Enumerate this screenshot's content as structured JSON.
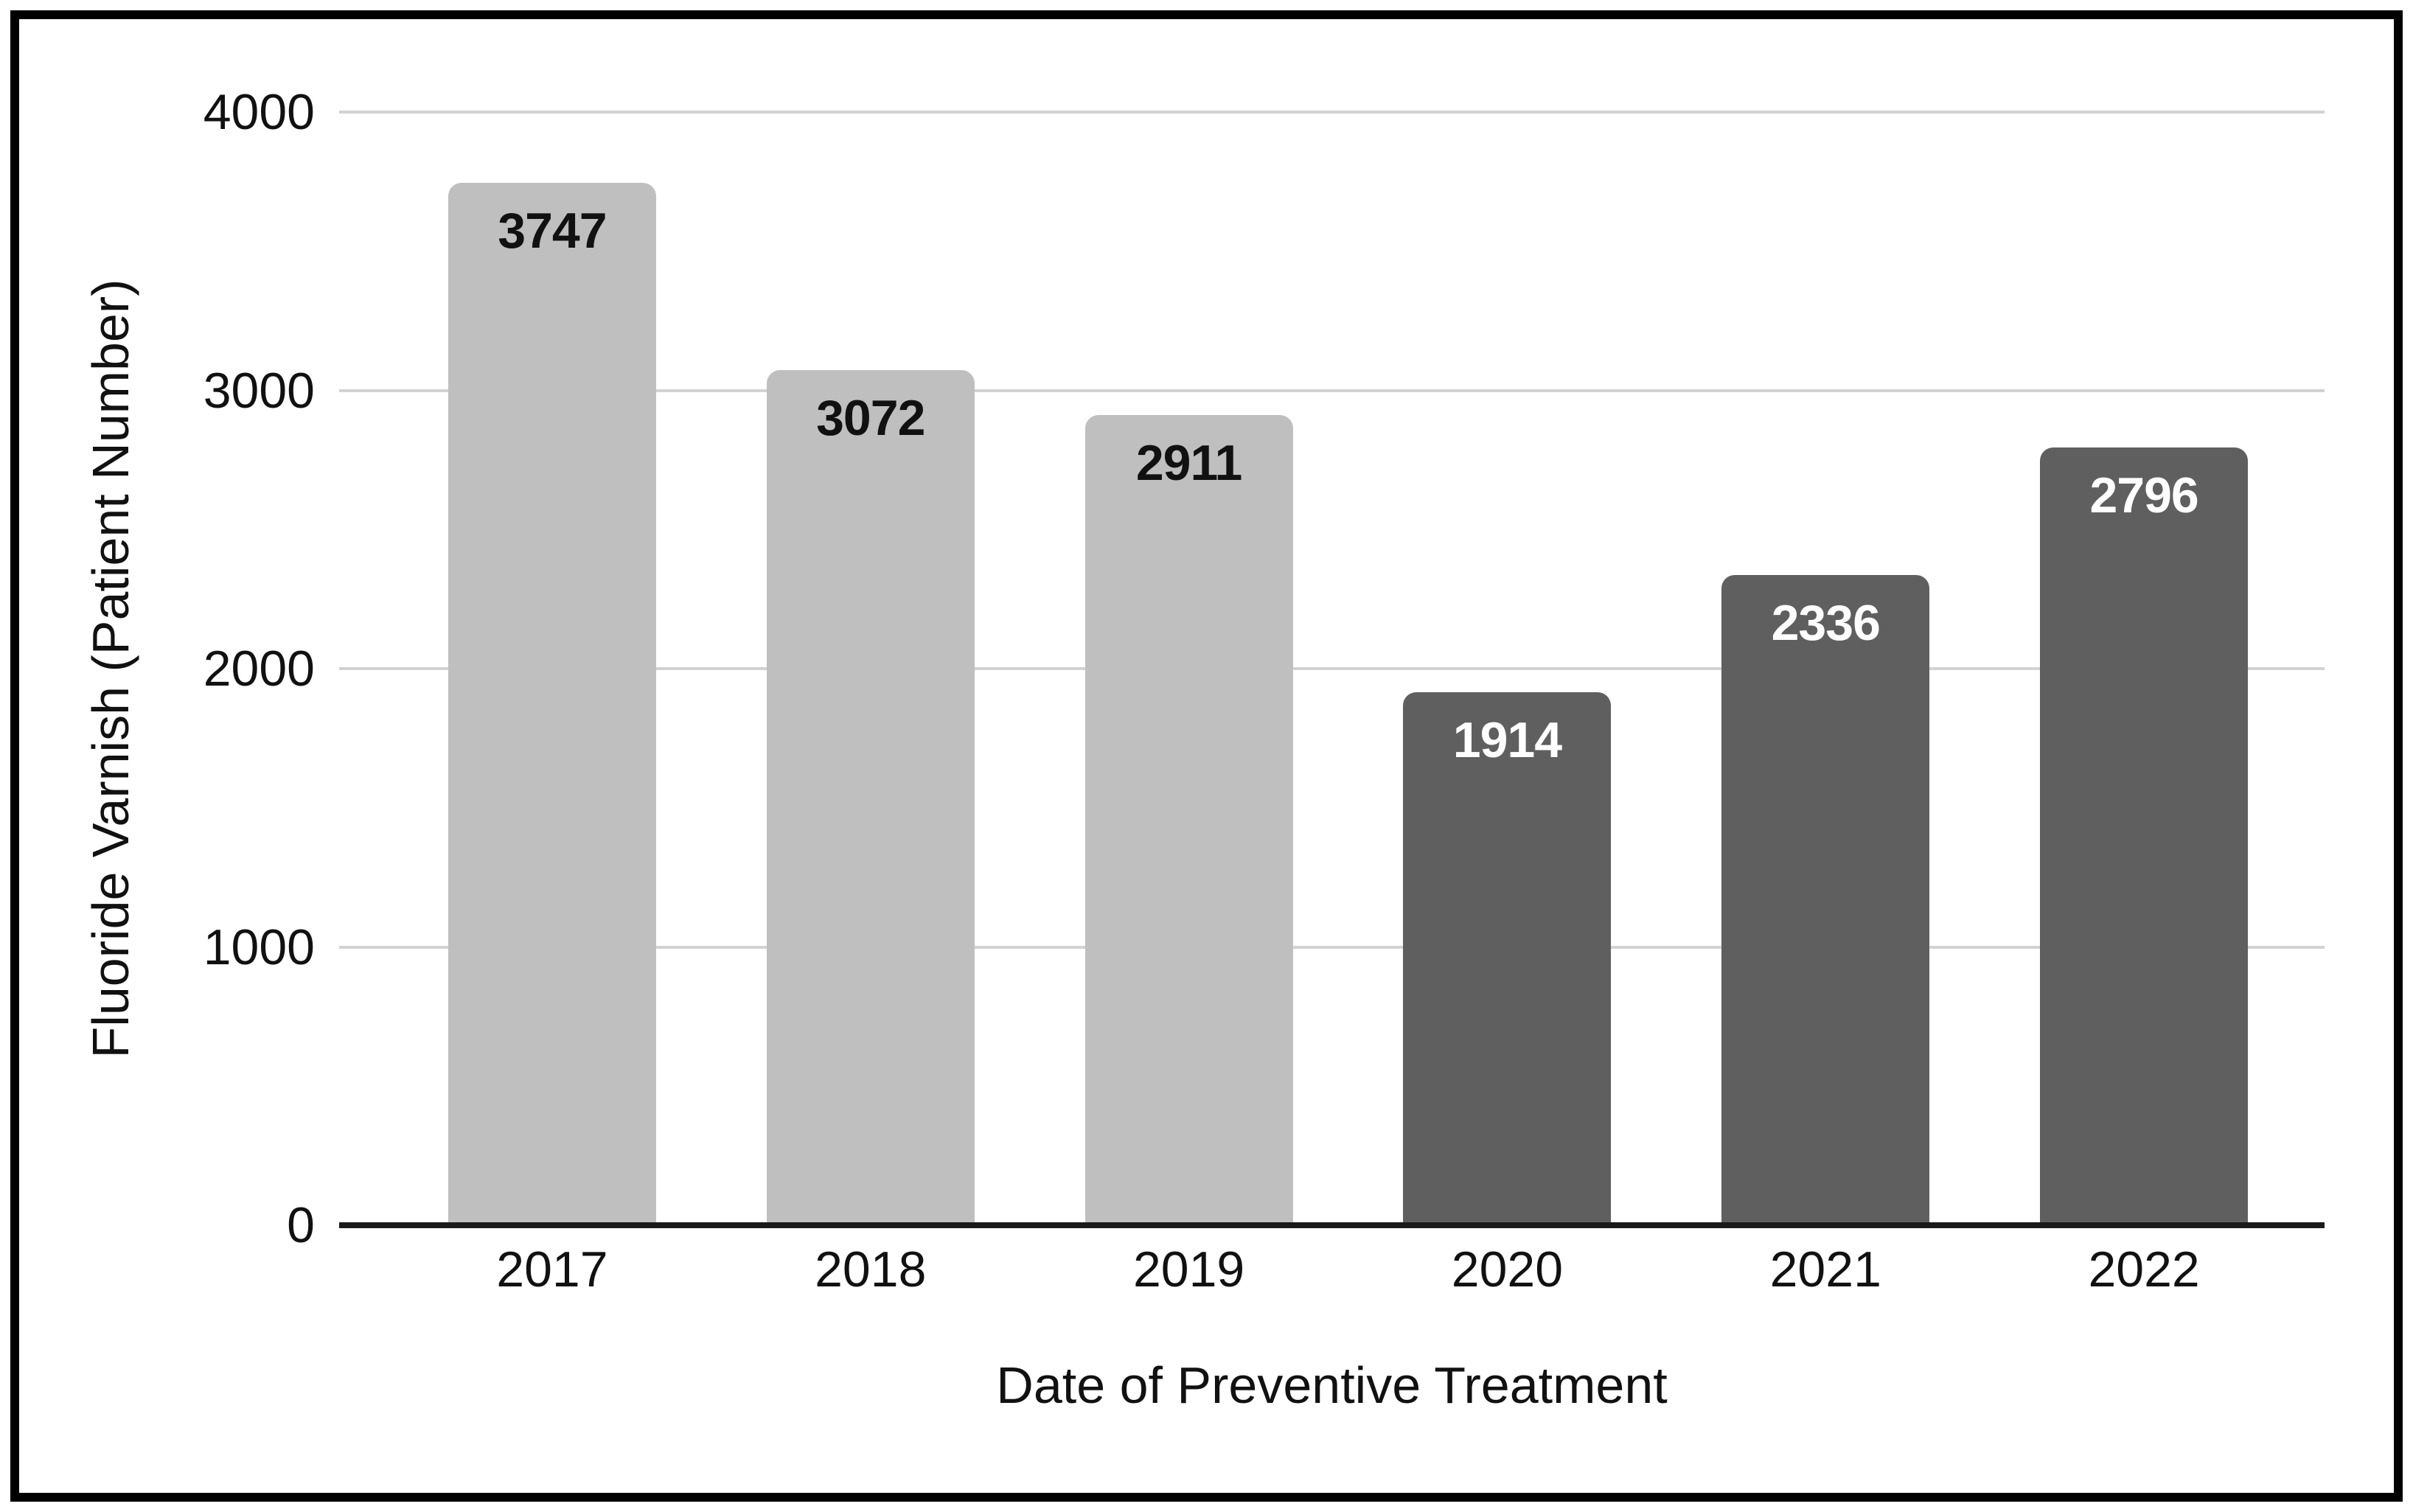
{
  "chart_data": {
    "type": "bar",
    "title": "",
    "categories": [
      "2017",
      "2018",
      "2019",
      "2020",
      "2021",
      "2022"
    ],
    "values": [
      3747,
      3072,
      2911,
      1914,
      2336,
      2796
    ],
    "series": [
      {
        "name": "Fluoride Varnish",
        "values": [
          3747,
          3072,
          2911,
          1914,
          2336,
          2796
        ]
      }
    ],
    "data_labels": [
      "3747",
      "3072",
      "2911",
      "1914",
      "2336",
      "2796"
    ],
    "data_label_position": "inside-top",
    "xlabel": "Date of Preventive Treatment",
    "ylabel": "Fluoride Varnish (Patient Number)",
    "ylim": [
      0,
      4000
    ],
    "yticks": [
      4000,
      3000,
      2000,
      1000,
      0
    ],
    "grid": "horizontal-only",
    "legend": "none",
    "colors": {
      "bar_fills": [
        "#bfbfbf",
        "#bfbfbf",
        "#bfbfbf",
        "#5f5f5f",
        "#5f5f5f",
        "#5f5f5f"
      ],
      "bar_label_colors": [
        "#111111",
        "#111111",
        "#111111",
        "#ffffff",
        "#ffffff",
        "#ffffff"
      ],
      "gridline": "#d2d2d2",
      "axis_baseline": "#1a1a1a",
      "tick_text": "#111111",
      "frame_border": "#000000",
      "background": "#ffffff"
    }
  }
}
